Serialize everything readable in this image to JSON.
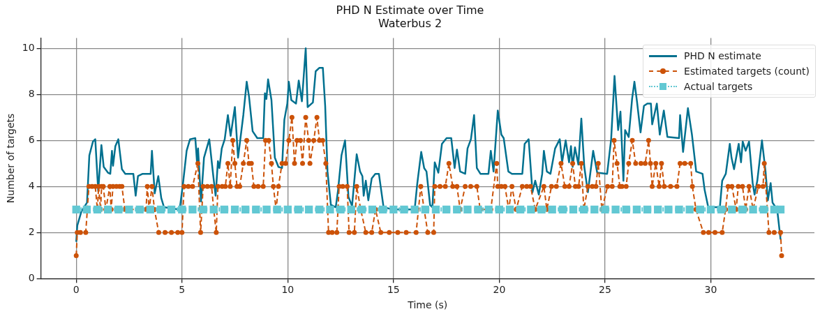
{
  "chart_data": {
    "type": "line",
    "title": "PHD N Estimate over Time",
    "subtitle": "Waterbus 2",
    "xlabel": "Time (s)",
    "ylabel": "Number of targets",
    "xlim": [
      -1.67,
      34.9
    ],
    "ylim": [
      0,
      10.45
    ],
    "xticks": [
      0,
      5,
      10,
      15,
      20,
      25,
      30
    ],
    "yticks": [
      0,
      2,
      4,
      6,
      8,
      10
    ],
    "grid": true,
    "legend": "top right",
    "series": [
      {
        "name": "PHD N estimate",
        "type": "line",
        "color": "#00708f",
        "marker": "none",
        "line_style": "solid",
        "x": [
          0,
          0.05,
          0.24,
          0.51,
          0.62,
          0.79,
          0.9,
          1.04,
          1.19,
          1.3,
          1.5,
          1.61,
          1.69,
          1.74,
          1.85,
          1.99,
          2.16,
          2.32,
          2.7,
          2.81,
          2.92,
          3.14,
          3.52,
          3.58,
          3.71,
          3.88,
          4.02,
          4.15,
          4.89,
          5.05,
          5.22,
          5.38,
          5.63,
          5.71,
          5.76,
          5.9,
          6.04,
          6.29,
          6.48,
          6.59,
          6.7,
          6.77,
          6.88,
          7.02,
          7.17,
          7.3,
          7.5,
          7.65,
          7.9,
          8.06,
          8.17,
          8.34,
          8.56,
          8.84,
          8.92,
          8.99,
          9.07,
          9.23,
          9.39,
          9.56,
          9.73,
          9.84,
          9.98,
          10.05,
          10.17,
          10.39,
          10.52,
          10.67,
          10.85,
          10.94,
          11.19,
          11.32,
          11.49,
          11.66,
          11.77,
          11.88,
          12.04,
          12.27,
          12.38,
          12.54,
          12.71,
          12.87,
          13.04,
          13.26,
          13.42,
          13.53,
          13.59,
          13.69,
          13.81,
          13.97,
          14.14,
          14.31,
          14.53,
          14.97,
          16.0,
          16.12,
          16.31,
          16.45,
          16.56,
          16.73,
          16.84,
          16.95,
          17.12,
          17.29,
          17.51,
          17.73,
          17.89,
          18.0,
          18.15,
          18.39,
          18.5,
          18.66,
          18.81,
          18.94,
          19.11,
          19.49,
          19.6,
          19.73,
          19.93,
          20.1,
          20.21,
          20.43,
          20.6,
          21.09,
          21.2,
          21.39,
          21.57,
          21.7,
          21.87,
          22.03,
          22.11,
          22.25,
          22.42,
          22.64,
          22.86,
          22.97,
          23.14,
          23.3,
          23.39,
          23.47,
          23.58,
          23.74,
          23.88,
          24.02,
          24.19,
          24.44,
          24.63,
          25.1,
          25.29,
          25.45,
          25.62,
          25.73,
          25.87,
          25.95,
          26.12,
          26.28,
          26.39,
          26.51,
          26.68,
          26.84,
          27.0,
          27.17,
          27.23,
          27.45,
          27.59,
          27.78,
          27.95,
          28.5,
          28.55,
          28.69,
          28.92,
          29.11,
          29.31,
          29.61,
          29.71,
          29.88,
          30.43,
          30.54,
          30.71,
          30.9,
          30.98,
          31.1,
          31.32,
          31.43,
          31.51,
          31.65,
          31.81,
          31.98,
          32.07,
          32.2,
          32.42,
          32.59,
          32.7,
          32.83,
          32.92,
          33.14,
          33.3
        ],
        "values": [
          1.6,
          2.3,
          2.9,
          3.3,
          5.35,
          5.95,
          6.05,
          3.8,
          5.8,
          4.85,
          4.6,
          4.55,
          5.55,
          4.9,
          5.75,
          6.05,
          4.75,
          4.55,
          4.55,
          3.6,
          4.45,
          4.55,
          4.55,
          5.55,
          3.7,
          4.45,
          3.5,
          3.1,
          3.0,
          4.15,
          5.55,
          6.05,
          6.1,
          5.05,
          5.65,
          3.35,
          5.25,
          6.05,
          4.45,
          3.6,
          5.1,
          4.8,
          5.65,
          6.05,
          7.1,
          6.2,
          7.45,
          5.25,
          7.1,
          8.55,
          7.9,
          6.4,
          6.1,
          6.1,
          8.05,
          7.8,
          8.65,
          7.75,
          5.25,
          4.85,
          4.8,
          6.9,
          7.6,
          8.55,
          7.75,
          7.6,
          8.6,
          7.7,
          10.0,
          7.45,
          7.65,
          9.0,
          9.15,
          9.15,
          7.5,
          4.65,
          3.2,
          3.1,
          3.85,
          5.35,
          6.0,
          3.55,
          3.15,
          5.4,
          4.65,
          4.45,
          3.6,
          4.25,
          3.4,
          4.35,
          4.55,
          4.55,
          3.1,
          3.0,
          3.0,
          4.1,
          5.5,
          4.8,
          4.65,
          3.2,
          3.1,
          5.05,
          4.6,
          5.85,
          6.1,
          6.1,
          4.8,
          5.6,
          4.65,
          4.55,
          5.65,
          6.05,
          7.1,
          4.8,
          4.55,
          4.55,
          5.55,
          4.65,
          7.3,
          6.25,
          6.1,
          4.65,
          4.55,
          4.55,
          5.85,
          6.05,
          3.75,
          4.25,
          3.65,
          4.55,
          5.55,
          4.65,
          4.55,
          5.65,
          6.05,
          5.05,
          6.0,
          5.05,
          5.75,
          4.85,
          5.7,
          4.95,
          6.95,
          4.85,
          3.75,
          5.55,
          4.6,
          4.55,
          6.05,
          8.8,
          6.45,
          7.25,
          4.25,
          6.45,
          6.15,
          7.8,
          8.55,
          7.7,
          6.35,
          7.5,
          7.6,
          7.6,
          6.7,
          7.6,
          6.25,
          7.3,
          6.15,
          6.1,
          7.1,
          5.5,
          7.4,
          6.25,
          4.65,
          4.55,
          3.85,
          3.1,
          3.1,
          4.25,
          4.55,
          5.85,
          5.25,
          4.75,
          5.85,
          5.05,
          5.95,
          5.55,
          5.95,
          4.15,
          3.65,
          4.25,
          6.0,
          4.65,
          3.4,
          4.15,
          3.3,
          3.0,
          1.7
        ]
      },
      {
        "name": "Estimated targets (count)",
        "type": "line",
        "color": "#cc5208",
        "marker": "circle",
        "line_style": "dashed",
        "x": [
          0,
          0.05,
          0.2,
          0.45,
          0.6,
          0.75,
          0.9,
          1.0,
          1.06,
          1.15,
          1.2,
          1.28,
          1.4,
          1.59,
          1.65,
          1.74,
          1.9,
          2.05,
          2.16,
          2.3,
          3.3,
          3.36,
          3.45,
          3.58,
          3.7,
          3.9,
          4.2,
          4.5,
          4.8,
          5.0,
          5.1,
          5.3,
          5.5,
          5.75,
          5.88,
          6.0,
          6.2,
          6.4,
          6.5,
          6.62,
          6.7,
          6.9,
          7.05,
          7.17,
          7.28,
          7.4,
          7.5,
          7.6,
          7.73,
          7.9,
          8.06,
          8.17,
          8.28,
          8.4,
          8.6,
          8.84,
          8.95,
          9.1,
          9.23,
          9.32,
          9.45,
          9.56,
          9.73,
          9.9,
          10.05,
          10.2,
          10.32,
          10.44,
          10.6,
          10.7,
          10.85,
          10.99,
          11.05,
          11.23,
          11.38,
          11.5,
          11.65,
          11.8,
          11.93,
          12.1,
          12.32,
          12.43,
          12.6,
          12.81,
          12.9,
          13.15,
          13.26,
          13.45,
          13.69,
          13.97,
          14.15,
          14.4,
          14.8,
          15.2,
          15.6,
          16.07,
          16.29,
          16.45,
          16.62,
          16.9,
          16.95,
          17.2,
          17.45,
          17.62,
          17.8,
          18.0,
          18.15,
          18.39,
          18.65,
          18.94,
          19.1,
          19.6,
          19.88,
          19.93,
          20.1,
          20.27,
          20.45,
          20.6,
          20.8,
          21.09,
          21.3,
          21.48,
          21.7,
          22.11,
          22.25,
          22.47,
          22.7,
          22.92,
          23.1,
          23.3,
          23.47,
          23.6,
          23.75,
          23.88,
          24.0,
          24.19,
          24.4,
          24.57,
          24.68,
          24.85,
          25.12,
          25.34,
          25.43,
          25.57,
          25.7,
          25.8,
          26.0,
          26.12,
          26.29,
          26.45,
          26.7,
          26.9,
          27.06,
          27.15,
          27.23,
          27.4,
          27.56,
          27.67,
          27.8,
          28.1,
          28.4,
          28.55,
          28.77,
          29.05,
          29.13,
          29.3,
          29.65,
          29.9,
          30.2,
          30.54,
          30.7,
          30.82,
          31.0,
          31.2,
          31.3,
          31.5,
          31.65,
          31.81,
          32.0,
          32.25,
          32.47,
          32.53,
          32.75,
          33.0,
          33.3,
          33.35
        ],
        "values": [
          1,
          2,
          2,
          2,
          4,
          4,
          4,
          3,
          4,
          3,
          4,
          4,
          3,
          4,
          3,
          4,
          4,
          4,
          4,
          3,
          3,
          4,
          3,
          4,
          3,
          2,
          2,
          2,
          2,
          2,
          4,
          4,
          4,
          5,
          2,
          4,
          4,
          4,
          3,
          2,
          4,
          4,
          4,
          5,
          4,
          6,
          5,
          4,
          4,
          5,
          6,
          5,
          5,
          4,
          4,
          4,
          6,
          6,
          5,
          4,
          3,
          4,
          5,
          5,
          6,
          7,
          5,
          6,
          6,
          5,
          7,
          6,
          5,
          6,
          7,
          6,
          6,
          5,
          2,
          2,
          2,
          4,
          4,
          4,
          2,
          2,
          4,
          3,
          2,
          2,
          3,
          2,
          2,
          2,
          2,
          2,
          4,
          3,
          2,
          2,
          4,
          4,
          4,
          5,
          4,
          4,
          3,
          4,
          4,
          4,
          3,
          3,
          5,
          4,
          4,
          4,
          3,
          4,
          3,
          4,
          4,
          4,
          3,
          4,
          3,
          4,
          4,
          5,
          4,
          4,
          5,
          4,
          4,
          5,
          3,
          4,
          4,
          4,
          5,
          3,
          4,
          4,
          6,
          5,
          4,
          4,
          4,
          5,
          6,
          5,
          5,
          5,
          6,
          5,
          4,
          5,
          4,
          5,
          4,
          4,
          4,
          5,
          5,
          5,
          4,
          3,
          2,
          2,
          2,
          2,
          3,
          4,
          4,
          3,
          4,
          4,
          3,
          4,
          3,
          4,
          4,
          5,
          2,
          2,
          2,
          1
        ]
      },
      {
        "name": "Actual targets",
        "type": "line",
        "color": "#62c8d3",
        "marker": "square",
        "line_style": "dotted",
        "x": [
          0,
          0.5,
          1,
          1.5,
          2,
          2.5,
          3,
          3.5,
          4,
          4.5,
          5,
          5.5,
          6,
          6.5,
          7,
          7.5,
          8,
          8.5,
          9,
          9.5,
          10,
          10.5,
          11,
          11.5,
          12,
          12.5,
          13,
          13.5,
          14,
          14.5,
          15,
          15.5,
          16,
          16.5,
          17,
          17.5,
          18,
          18.5,
          19,
          19.5,
          20,
          20.5,
          21,
          21.5,
          22,
          22.5,
          23,
          23.5,
          24,
          24.5,
          25,
          25.5,
          26,
          26.5,
          27,
          27.5,
          28,
          28.5,
          29,
          29.5,
          30,
          30.5,
          31,
          31.5,
          32,
          32.5,
          33,
          33.3
        ],
        "values": [
          3,
          3,
          3,
          3,
          3,
          3,
          3,
          3,
          3,
          3,
          3,
          3,
          3,
          3,
          3,
          3,
          3,
          3,
          3,
          3,
          3,
          3,
          3,
          3,
          3,
          3,
          3,
          3,
          3,
          3,
          3,
          3,
          3,
          3,
          3,
          3,
          3,
          3,
          3,
          3,
          3,
          3,
          3,
          3,
          3,
          3,
          3,
          3,
          3,
          3,
          3,
          3,
          3,
          3,
          3,
          3,
          3,
          3,
          3,
          3,
          3,
          3,
          3,
          3,
          3,
          3,
          3,
          3
        ]
      }
    ]
  }
}
